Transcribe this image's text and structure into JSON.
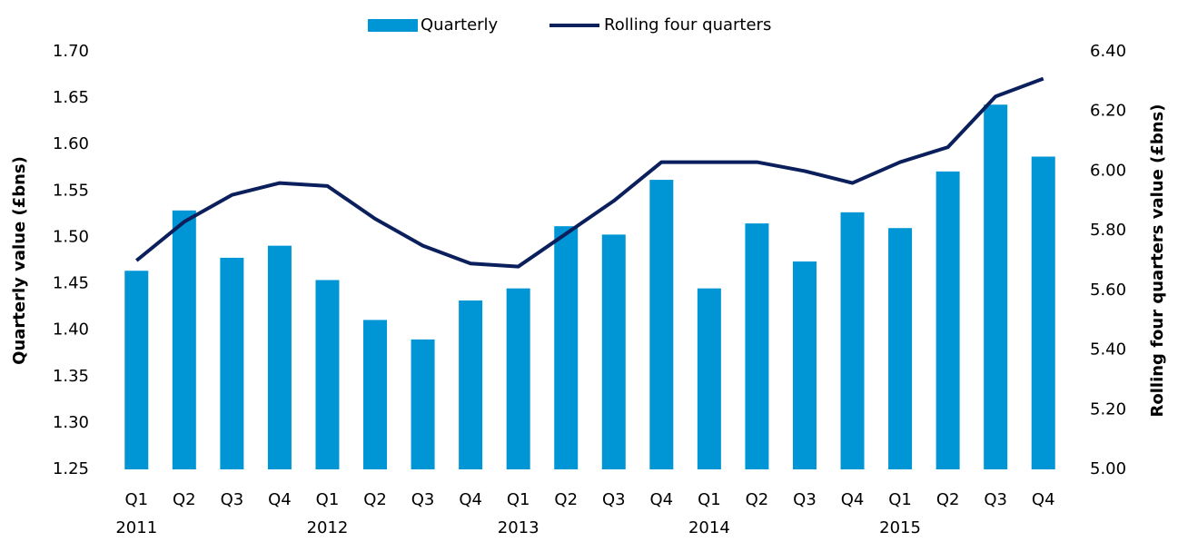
{
  "chart_data": {
    "type": "bar_line",
    "categories": [
      "Q1",
      "Q2",
      "Q3",
      "Q4",
      "Q1",
      "Q2",
      "Q3",
      "Q4",
      "Q1",
      "Q2",
      "Q3",
      "Q4",
      "Q1",
      "Q2",
      "Q3",
      "Q4",
      "Q1",
      "Q2",
      "Q3",
      "Q4"
    ],
    "years": [
      "2011",
      "2012",
      "2013",
      "2014",
      "2015"
    ],
    "y_label": "Quarterly value (£bns)",
    "y2_label": "Rolling four quarters value (£bns)",
    "series": [
      {
        "name": "Quarterly",
        "type": "bar",
        "color": "#0096d6",
        "values": [
          1.464,
          1.529,
          1.478,
          1.491,
          1.454,
          1.411,
          1.39,
          1.432,
          1.445,
          1.512,
          1.503,
          1.562,
          1.445,
          1.515,
          1.474,
          1.527,
          1.51,
          1.571,
          1.643,
          1.587
        ]
      },
      {
        "name": "Rolling four quarters",
        "type": "line",
        "axis": "y2",
        "color": "#0a1f5c",
        "values": [
          5.7,
          5.83,
          5.92,
          5.96,
          5.95,
          5.84,
          5.75,
          5.69,
          5.68,
          5.79,
          5.9,
          6.03,
          6.03,
          6.03,
          6.0,
          5.96,
          6.03,
          6.08,
          6.25,
          6.31
        ]
      }
    ],
    "ylim": [
      1.25,
      1.7
    ],
    "yticks": [
      {
        "value": 1.25,
        "label": "1.25"
      },
      {
        "value": 1.3,
        "label": "1.30"
      },
      {
        "value": 1.35,
        "label": "1.35"
      },
      {
        "value": 1.4,
        "label": "1.40"
      },
      {
        "value": 1.45,
        "label": "1.45"
      },
      {
        "value": 1.5,
        "label": "1.50"
      },
      {
        "value": 1.55,
        "label": "1.55"
      },
      {
        "value": 1.6,
        "label": "1.60"
      },
      {
        "value": 1.65,
        "label": "1.65"
      },
      {
        "value": 1.7,
        "label": "1.70"
      }
    ],
    "y2lim": [
      5.0,
      6.4
    ],
    "y2ticks": [
      {
        "value": 5.0,
        "label": "5.00"
      },
      {
        "value": 5.2,
        "label": "5.20"
      },
      {
        "value": 5.4,
        "label": "5.40"
      },
      {
        "value": 5.6,
        "label": "5.60"
      },
      {
        "value": 5.8,
        "label": "5.80"
      },
      {
        "value": 6.0,
        "label": "6.00"
      },
      {
        "value": 6.2,
        "label": "6.20"
      },
      {
        "value": 6.4,
        "label": "6.40"
      }
    ],
    "legend": "top"
  }
}
